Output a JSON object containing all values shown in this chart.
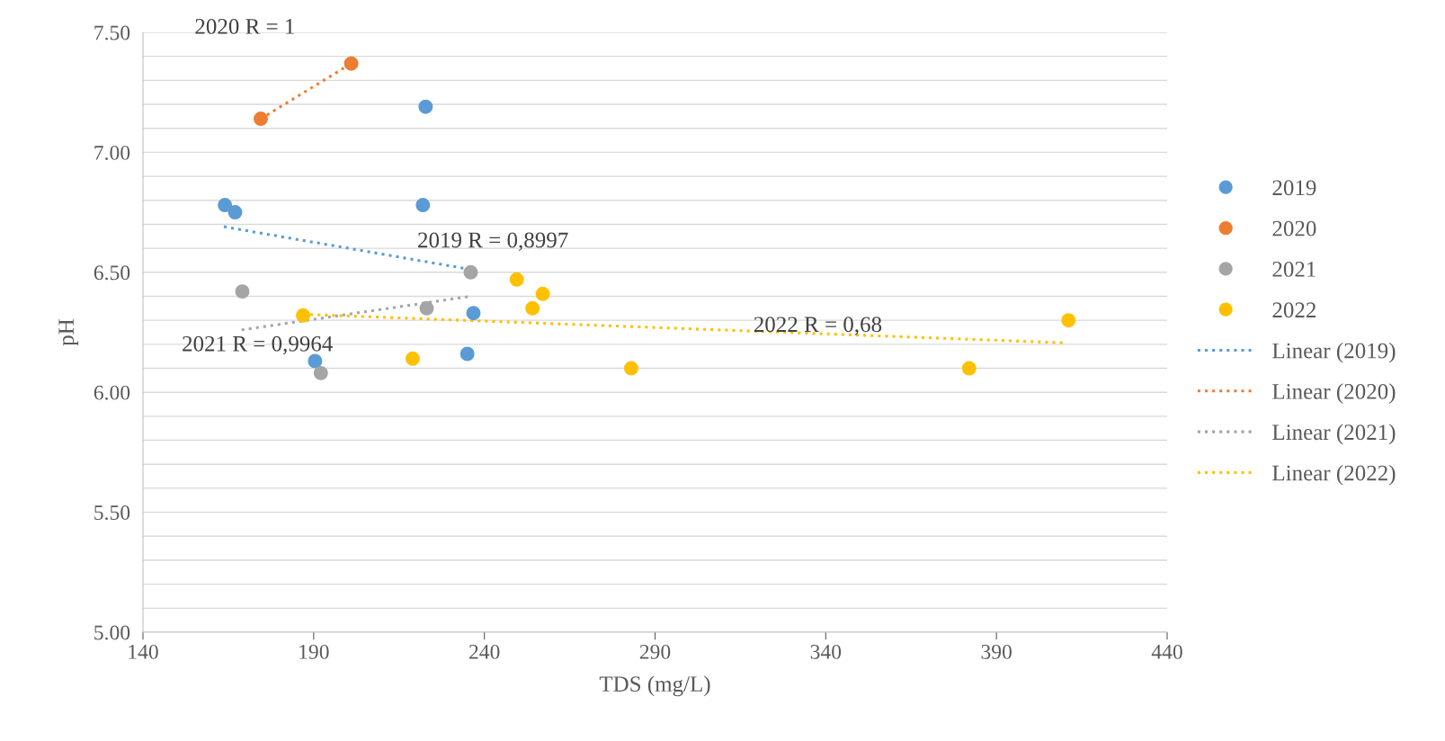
{
  "chart_data": {
    "type": "scatter",
    "xlabel": "TDS (mg/L)",
    "ylabel": "pH",
    "xlim": [
      140,
      440
    ],
    "xticks": [
      140,
      190,
      240,
      290,
      340,
      390,
      440
    ],
    "ylim": [
      5.0,
      7.5
    ],
    "yticks": [
      {
        "value": 5.0,
        "label": "5.00"
      },
      {
        "value": 5.1,
        "label": null
      },
      {
        "value": 5.2,
        "label": null
      },
      {
        "value": 5.3,
        "label": null
      },
      {
        "value": 5.4,
        "label": null
      },
      {
        "value": 5.5,
        "label": "5.50"
      },
      {
        "value": 5.6,
        "label": null
      },
      {
        "value": 5.7,
        "label": null
      },
      {
        "value": 5.8,
        "label": null
      },
      {
        "value": 5.9,
        "label": null
      },
      {
        "value": 6.0,
        "label": "6.00"
      },
      {
        "value": 6.1,
        "label": null
      },
      {
        "value": 6.2,
        "label": null
      },
      {
        "value": 6.3,
        "label": null
      },
      {
        "value": 6.4,
        "label": null
      },
      {
        "value": 6.5,
        "label": "6.50"
      },
      {
        "value": 6.6,
        "label": null
      },
      {
        "value": 6.7,
        "label": null
      },
      {
        "value": 6.8,
        "label": null
      },
      {
        "value": 6.9,
        "label": null
      },
      {
        "value": 7.0,
        "label": "7.00"
      },
      {
        "value": 7.1,
        "label": null
      },
      {
        "value": 7.2,
        "label": null
      },
      {
        "value": 7.3,
        "label": null
      },
      {
        "value": 7.4,
        "label": null
      },
      {
        "value": 7.5,
        "label": "7.50"
      }
    ],
    "grid": "y",
    "legend": "right",
    "series": [
      {
        "name": "2019",
        "marker": "circle",
        "color": "#5b9bd5",
        "x": [
          164,
          167,
          222.8,
          222,
          190.4,
          236.8,
          235
        ],
        "values": [
          6.78,
          6.75,
          7.19,
          6.78,
          6.13,
          6.33,
          6.16
        ]
      },
      {
        "name": "2020",
        "marker": "circle",
        "color": "#ed7d31",
        "x": [
          174.5,
          201
        ],
        "values": [
          7.14,
          7.37
        ]
      },
      {
        "name": "2021",
        "marker": "circle",
        "color": "#a5a5a5",
        "x": [
          169.1,
          192.1,
          223.1,
          236
        ],
        "values": [
          6.42,
          6.08,
          6.35,
          6.5
        ]
      },
      {
        "name": "2022",
        "marker": "circle",
        "color": "#ffc000",
        "x": [
          186.9,
          219,
          249.5,
          254.1,
          257.1,
          283,
          382,
          411.1
        ],
        "values": [
          6.32,
          6.14,
          6.47,
          6.35,
          6.41,
          6.1,
          6.1,
          6.3
        ]
      },
      {
        "name": "Linear (2019)",
        "type": "line",
        "line_style": "dotted",
        "color": "#5b9bd5",
        "x": [
          163.7,
          236.8
        ],
        "values": [
          6.69,
          6.51
        ]
      },
      {
        "name": "Linear (2020)",
        "type": "line",
        "line_style": "dotted",
        "color": "#ed7d31",
        "x": [
          174.5,
          201
        ],
        "values": [
          7.14,
          7.37
        ]
      },
      {
        "name": "Linear (2021)",
        "type": "line",
        "line_style": "dotted",
        "color": "#a5a5a5",
        "x": [
          168.9,
          236
        ],
        "values": [
          6.26,
          6.4
        ]
      },
      {
        "name": "Linear (2022)",
        "type": "line",
        "line_style": "dotted",
        "color": "#ffc000",
        "x": [
          186.9,
          409.8
        ],
        "values": [
          6.325,
          6.206
        ]
      }
    ],
    "annotations": [
      "2019 R = 0,8997",
      "2020 R = 1",
      "2021 R = 0,9964",
      "2022 R = 0,68"
    ]
  }
}
